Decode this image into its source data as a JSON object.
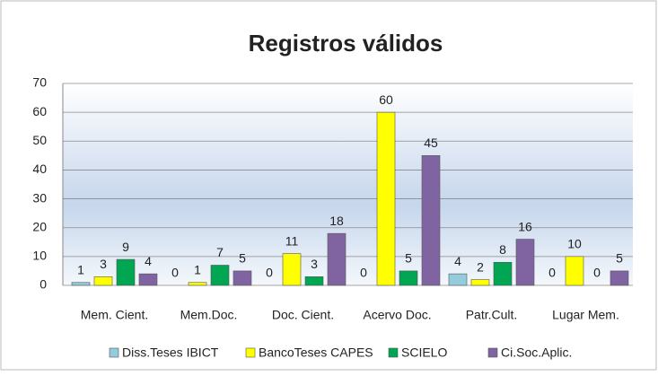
{
  "chart_data": {
    "type": "bar",
    "title": "Registros válidos",
    "categories": [
      "Mem. Cient.",
      "Mem.Doc.",
      "Doc. Cient.",
      "Acervo Doc.",
      "Patr.Cult.",
      "Lugar Mem."
    ],
    "series": [
      {
        "name": "Diss.Teses IBICT",
        "color": "#93cddd",
        "values": [
          1,
          0,
          0,
          0,
          4,
          0
        ]
      },
      {
        "name": "BancoTeses CAPES",
        "color": "#ffff00",
        "values": [
          3,
          1,
          11,
          60,
          2,
          10
        ]
      },
      {
        "name": "SCIELO",
        "color": "#00a651",
        "values": [
          9,
          7,
          3,
          5,
          8,
          0
        ]
      },
      {
        "name": "Ci.Soc.Aplic.",
        "color": "#8064a2",
        "values": [
          4,
          5,
          18,
          45,
          16,
          5
        ]
      }
    ],
    "ylim": [
      0,
      70
    ],
    "yticks": [
      0,
      10,
      20,
      30,
      40,
      50,
      60,
      70
    ],
    "grid": true,
    "legend": "bottom"
  }
}
